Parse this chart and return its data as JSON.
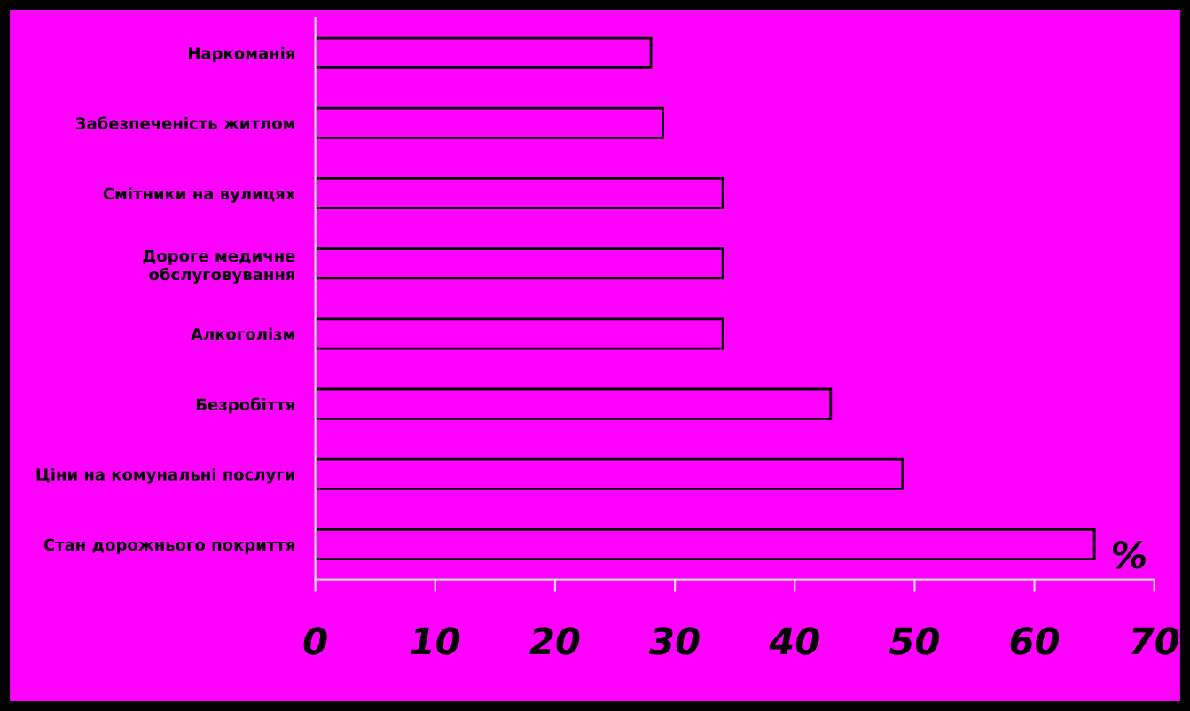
{
  "chart_data": {
    "type": "bar",
    "orientation": "horizontal",
    "xlabel": "%",
    "categories": [
      "Наркоманія",
      "Забезпеченість житлом",
      "Смітники на вулицях",
      "Дороге медичне\nобслуговування",
      "Алкоголізм",
      "Безробіття",
      "Ціни на комунальні послуги",
      "Стан дорожнього покриття"
    ],
    "values": [
      28,
      29,
      34,
      34,
      34,
      43,
      49,
      65
    ],
    "color": "#ff00ff",
    "xlim": [
      0,
      70
    ],
    "xticks": [
      0,
      10,
      20,
      30,
      40,
      50,
      60,
      70
    ],
    "grid": false
  }
}
